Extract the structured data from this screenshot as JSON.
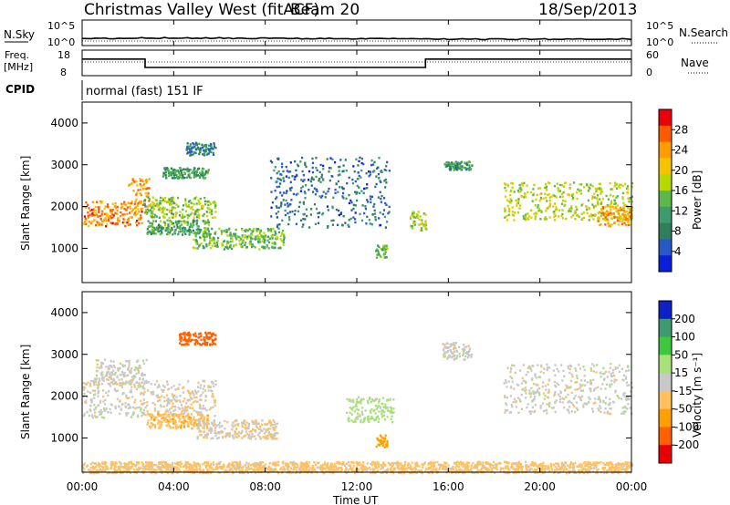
{
  "header": {
    "title": "Christmas Valley West (fitACF)",
    "beam": "Beam 20",
    "date": "18/Sep/2013"
  },
  "strips": {
    "nsky_label": "N.Sky",
    "nsky_ticks": [
      "10^5",
      "10^0"
    ],
    "nsearch_label": "N.Search",
    "freq_label": "Freq.",
    "freq_unit": "[MHz]",
    "freq_ticks": [
      "18",
      "8"
    ],
    "nave_label": "Nave",
    "nave_ticks": [
      "60",
      "0"
    ],
    "cpid_label": "CPID",
    "cpid_value": "normal (fast) 151 IF"
  },
  "axes": {
    "ylabel": "Slant Range [km]",
    "yticks": [
      "4000",
      "3000",
      "2000",
      "1000"
    ],
    "xlabel": "Time UT",
    "xticks": [
      "00:00",
      "04:00",
      "08:00",
      "12:00",
      "16:00",
      "20:00",
      "00:00"
    ]
  },
  "power_colorbar": {
    "label": "Power [dB]",
    "ticks": [
      "28",
      "24",
      "20",
      "16",
      "12",
      "8",
      "4"
    ],
    "colors": [
      "#e8000b",
      "#ff5a00",
      "#ff9c00",
      "#f5c400",
      "#b5d800",
      "#5cb84a",
      "#3f9a6e",
      "#2f7f5a",
      "#2858c8",
      "#0a1fd8"
    ]
  },
  "velocity_colorbar": {
    "label": "Velocity [m s⁻¹]",
    "ticks": [
      "200",
      "100",
      "50",
      "15",
      "-15",
      "-50",
      "-100",
      "-200"
    ],
    "colors": [
      "#1020c8",
      "#3f9a6e",
      "#3fc83f",
      "#a8e07a",
      "#c8c8c8",
      "#ffc060",
      "#ffa000",
      "#ff6000",
      "#e80000"
    ]
  },
  "chart_data": [
    {
      "type": "line",
      "panel": "N.Sky / N.Search",
      "x": [
        "00:00",
        "04:00",
        "08:00",
        "12:00",
        "16:00",
        "20:00",
        "00:00"
      ],
      "series": [
        {
          "values": [
            1.2,
            1.5,
            1.3,
            1.2,
            1.0,
            1.0,
            1.1
          ]
        }
      ]
    },
    {
      "type": "line",
      "panel": "Freq. / Nave",
      "series": [
        {
          "name": "Freq.",
          "x": [
            0,
            2.75,
            2.75,
            15.0,
            15.0,
            24
          ],
          "values": [
            14.5,
            14.5,
            11.2,
            11.2,
            14.5,
            14.5
          ]
        },
        {
          "name": "Nave",
          "values": [
            16,
            16,
            16,
            16,
            16,
            16,
            16
          ]
        }
      ],
      "ylim": [
        8,
        18
      ]
    },
    {
      "type": "heatmap",
      "panel": "Power",
      "xlim_hours": [
        0,
        24
      ],
      "ylim_km": [
        180,
        4500
      ],
      "features": [
        {
          "t0": 0.0,
          "t1": 2.6,
          "r0": 1550,
          "r1": 2150,
          "power_db": 26
        },
        {
          "t0": 2.0,
          "t1": 2.9,
          "r0": 1900,
          "r1": 2700,
          "power_db": 24
        },
        {
          "t0": 2.7,
          "t1": 5.8,
          "r0": 1750,
          "r1": 2250,
          "power_db": 16
        },
        {
          "t0": 2.8,
          "t1": 5.5,
          "r0": 1350,
          "r1": 1700,
          "power_db": 12
        },
        {
          "t0": 3.5,
          "t1": 5.5,
          "r0": 2700,
          "r1": 2950,
          "power_db": 10
        },
        {
          "t0": 4.5,
          "t1": 5.8,
          "r0": 3250,
          "r1": 3550,
          "power_db": 8
        },
        {
          "t0": 4.8,
          "t1": 8.8,
          "r0": 1000,
          "r1": 1500,
          "power_db": 14
        },
        {
          "t0": 8.2,
          "t1": 13.4,
          "r0": 1500,
          "r1": 3200,
          "power_db": 6
        },
        {
          "t0": 12.8,
          "t1": 13.3,
          "r0": 800,
          "r1": 1100,
          "power_db": 14
        },
        {
          "t0": 14.3,
          "t1": 15.0,
          "r0": 1450,
          "r1": 1900,
          "power_db": 18
        },
        {
          "t0": 15.8,
          "t1": 17.0,
          "r0": 2900,
          "r1": 3100,
          "power_db": 10
        },
        {
          "t0": 18.4,
          "t1": 24.0,
          "r0": 1700,
          "r1": 2600,
          "power_db": 18
        },
        {
          "t0": 22.5,
          "t1": 24.0,
          "r0": 1550,
          "r1": 2050,
          "power_db": 24
        }
      ]
    },
    {
      "type": "heatmap",
      "panel": "Velocity",
      "xlim_hours": [
        0,
        24
      ],
      "ylim_km": [
        180,
        4500
      ],
      "features": [
        {
          "t0": 0.0,
          "t1": 2.7,
          "r0": 1500,
          "r1": 2400,
          "velocity_ms": 0
        },
        {
          "t0": 0.5,
          "t1": 2.8,
          "r0": 2300,
          "r1": 2900,
          "velocity_ms": 0
        },
        {
          "t0": 2.6,
          "t1": 5.8,
          "r0": 1550,
          "r1": 2400,
          "velocity_ms": -10
        },
        {
          "t0": 2.8,
          "t1": 5.5,
          "r0": 1250,
          "r1": 1600,
          "velocity_ms": -40
        },
        {
          "t0": 4.2,
          "t1": 5.8,
          "r0": 3250,
          "r1": 3550,
          "velocity_ms": -150
        },
        {
          "t0": 5.0,
          "t1": 8.5,
          "r0": 1000,
          "r1": 1450,
          "velocity_ms": -10
        },
        {
          "t0": 11.5,
          "t1": 13.6,
          "r0": 1400,
          "r1": 2000,
          "velocity_ms": 30
        },
        {
          "t0": 12.8,
          "t1": 13.3,
          "r0": 800,
          "r1": 1100,
          "velocity_ms": -80
        },
        {
          "t0": 15.7,
          "t1": 17.0,
          "r0": 2900,
          "r1": 3300,
          "velocity_ms": 0
        },
        {
          "t0": 18.4,
          "t1": 24.0,
          "r0": 1600,
          "r1": 2800,
          "velocity_ms": 0
        },
        {
          "t0": 0.0,
          "t1": 24.0,
          "r0": 180,
          "r1": 450,
          "velocity_ms": -30
        }
      ]
    }
  ]
}
